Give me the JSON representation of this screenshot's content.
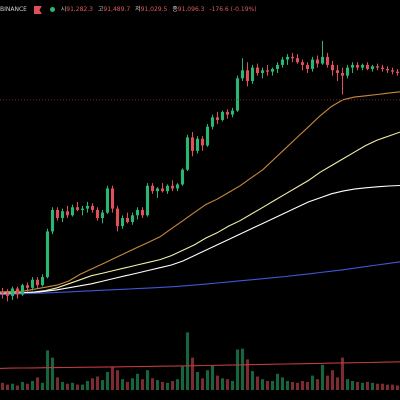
{
  "header": {
    "exchange": "BINANCE",
    "status_dot": "live-dot",
    "ohlc": [
      {
        "label": "시",
        "value": "91,282.3"
      },
      {
        "label": "고",
        "value": "91,489.7"
      },
      {
        "label": "저",
        "value": "91,029.5"
      },
      {
        "label": "종",
        "value": "91,096.3"
      }
    ],
    "change": "-176.6 (-0.19%)"
  },
  "colors": {
    "background": "#000000",
    "up": "#2bb673",
    "down": "#e0505a",
    "ma_short": "#c8893d",
    "ma_mid": "#f3efa6",
    "ma_long": "#ffffff",
    "ma_200": "#3f56d6",
    "ma_400": "#c0393b",
    "price_line": "#8a2b2b"
  },
  "chart_data": {
    "type": "candlestick",
    "title": "",
    "xlabel": "",
    "ylabel": "",
    "ylim": [
      89800,
      91900
    ],
    "volume_ylim": [
      0,
      100
    ],
    "price_line": 91380,
    "grid": false,
    "candles": [
      [
        89950,
        89980,
        89900,
        89940,
        8
      ],
      [
        89940,
        89970,
        89880,
        89920,
        6
      ],
      [
        89920,
        89990,
        89890,
        89975,
        7
      ],
      [
        89975,
        89990,
        89900,
        89930,
        5
      ],
      [
        89930,
        90010,
        89920,
        90000,
        9
      ],
      [
        90000,
        90020,
        89950,
        89980,
        7
      ],
      [
        89980,
        90060,
        89960,
        90040,
        10
      ],
      [
        90040,
        90060,
        89980,
        90000,
        14
      ],
      [
        90000,
        90080,
        89990,
        90060,
        8
      ],
      [
        90060,
        90420,
        90050,
        90400,
        44
      ],
      [
        90400,
        90580,
        90380,
        90560,
        36
      ],
      [
        90560,
        90580,
        90480,
        90500,
        14
      ],
      [
        90500,
        90570,
        90470,
        90550,
        9
      ],
      [
        90550,
        90590,
        90500,
        90520,
        7
      ],
      [
        90520,
        90600,
        90510,
        90580,
        8
      ],
      [
        90580,
        90620,
        90550,
        90560,
        6
      ],
      [
        90560,
        90590,
        90520,
        90570,
        6
      ],
      [
        90570,
        90620,
        90540,
        90590,
        10
      ],
      [
        90590,
        90610,
        90540,
        90560,
        13
      ],
      [
        90560,
        90580,
        90480,
        90500,
        15
      ],
      [
        90500,
        90560,
        90460,
        90540,
        11
      ],
      [
        90540,
        90740,
        90530,
        90720,
        20
      ],
      [
        90720,
        90740,
        90540,
        90570,
        26
      ],
      [
        90570,
        90590,
        90400,
        90440,
        22
      ],
      [
        90440,
        90520,
        90420,
        90500,
        12
      ],
      [
        90500,
        90540,
        90460,
        90470,
        9
      ],
      [
        90470,
        90540,
        90450,
        90520,
        13
      ],
      [
        90520,
        90580,
        90490,
        90560,
        18
      ],
      [
        90560,
        90580,
        90500,
        90520,
        12
      ],
      [
        90520,
        90760,
        90510,
        90740,
        22
      ],
      [
        90740,
        90760,
        90680,
        90700,
        13
      ],
      [
        90700,
        90730,
        90650,
        90720,
        11
      ],
      [
        90720,
        90760,
        90690,
        90700,
        9
      ],
      [
        90700,
        90750,
        90680,
        90740,
        8
      ],
      [
        90740,
        90780,
        90700,
        90720,
        10
      ],
      [
        90720,
        90760,
        90700,
        90750,
        12
      ],
      [
        90750,
        90870,
        90740,
        90860,
        26
      ],
      [
        90860,
        91120,
        90850,
        91100,
        64
      ],
      [
        91100,
        91140,
        90960,
        91000,
        36
      ],
      [
        91000,
        91110,
        90980,
        91090,
        20
      ],
      [
        91090,
        91110,
        91000,
        91040,
        13
      ],
      [
        91040,
        91200,
        91030,
        91180,
        22
      ],
      [
        91180,
        91270,
        91160,
        91250,
        27
      ],
      [
        91250,
        91290,
        91200,
        91230,
        16
      ],
      [
        91230,
        91300,
        91220,
        91290,
        13
      ],
      [
        91290,
        91310,
        91240,
        91270,
        12
      ],
      [
        91270,
        91320,
        91250,
        91300,
        10
      ],
      [
        91300,
        91560,
        91290,
        91540,
        45
      ],
      [
        91540,
        91690,
        91520,
        91600,
        46
      ],
      [
        91600,
        91660,
        91480,
        91520,
        34
      ],
      [
        91520,
        91640,
        91500,
        91620,
        21
      ],
      [
        91620,
        91650,
        91560,
        91580,
        15
      ],
      [
        91580,
        91620,
        91540,
        91600,
        12
      ],
      [
        91600,
        91640,
        91560,
        91590,
        10
      ],
      [
        91590,
        91620,
        91560,
        91610,
        10
      ],
      [
        91610,
        91660,
        91580,
        91640,
        18
      ],
      [
        91640,
        91700,
        91620,
        91680,
        14
      ],
      [
        91680,
        91720,
        91640,
        91700,
        10
      ],
      [
        91700,
        91730,
        91660,
        91690,
        9
      ],
      [
        91690,
        91720,
        91650,
        91660,
        8
      ],
      [
        91660,
        91680,
        91600,
        91640,
        10
      ],
      [
        91640,
        91660,
        91580,
        91610,
        9
      ],
      [
        91610,
        91700,
        91590,
        91680,
        16
      ],
      [
        91680,
        91710,
        91620,
        91650,
        12
      ],
      [
        91650,
        91820,
        91640,
        91700,
        28
      ],
      [
        91700,
        91730,
        91620,
        91640,
        16
      ],
      [
        91640,
        91670,
        91560,
        91600,
        22
      ],
      [
        91600,
        91640,
        91520,
        91580,
        14
      ],
      [
        91580,
        91620,
        91420,
        91560,
        36
      ],
      [
        91560,
        91640,
        91540,
        91620,
        12
      ],
      [
        91620,
        91660,
        91580,
        91640,
        10
      ],
      [
        91640,
        91660,
        91600,
        91620,
        9
      ],
      [
        91620,
        91650,
        91600,
        91640,
        8
      ],
      [
        91640,
        91660,
        91600,
        91610,
        9
      ],
      [
        91610,
        91640,
        91590,
        91630,
        8
      ],
      [
        91630,
        91650,
        91600,
        91620,
        7
      ],
      [
        91620,
        91640,
        91590,
        91610,
        7
      ],
      [
        91610,
        91630,
        91580,
        91600,
        6
      ],
      [
        91600,
        91620,
        91570,
        91590,
        6
      ],
      [
        91590,
        91610,
        91560,
        91580,
        5
      ]
    ],
    "moving_averages": [
      {
        "key": "ma_short",
        "values": [
          89950,
          89952,
          89955,
          89970,
          89985,
          90000,
          90030,
          90080,
          90120,
          90160,
          90200,
          90240,
          90280,
          90320,
          90360,
          90420,
          90480,
          90540,
          90600,
          90640,
          90690,
          90740,
          90800,
          90860,
          90940,
          91020,
          91100,
          91180,
          91260,
          91330,
          91380,
          91400,
          91410,
          91420,
          91430,
          91440
        ]
      },
      {
        "key": "ma_mid",
        "values": [
          89940,
          89942,
          89944,
          89950,
          89960,
          89980,
          90010,
          90040,
          90070,
          90090,
          90110,
          90130,
          90150,
          90170,
          90190,
          90220,
          90260,
          90300,
          90350,
          90390,
          90440,
          90480,
          90530,
          90580,
          90630,
          90680,
          90730,
          90780,
          90840,
          90890,
          90940,
          90990,
          91040,
          91080,
          91110,
          91140
        ]
      },
      {
        "key": "ma_long",
        "values": [
          89930,
          89935,
          89940,
          89945,
          89955,
          89965,
          89980,
          89995,
          90010,
          90030,
          90050,
          90070,
          90090,
          90110,
          90130,
          90150,
          90180,
          90220,
          90260,
          90300,
          90340,
          90380,
          90420,
          90460,
          90500,
          90540,
          90580,
          90620,
          90650,
          90680,
          90700,
          90715,
          90725,
          90732,
          90738,
          90742
        ]
      },
      {
        "key": "ma_200",
        "values": [
          89930,
          89933,
          89936,
          89939,
          89942,
          89946,
          89950,
          89954,
          89958,
          89962,
          89966,
          89970,
          89974,
          89978,
          89983,
          89988,
          89994,
          90000,
          90008,
          90016,
          90024,
          90032,
          90040,
          90048,
          90056,
          90064,
          90074,
          90084,
          90094,
          90104,
          90114,
          90126,
          90138,
          90150,
          90162,
          90174
        ]
      },
      {
        "key": "ma_400",
        "values": [
          80,
          81,
          81.5,
          82,
          82.5,
          83,
          83.5,
          84,
          84.5,
          85,
          85.6,
          86.2,
          86.8,
          87.4,
          88,
          88.7,
          89.4,
          90.1,
          90.8,
          91.5,
          92.3,
          93.1,
          93.9,
          94.7,
          95.5,
          96.3,
          97.1,
          97.9,
          98.7,
          99.5,
          100.3,
          101.1,
          101.9,
          102.7,
          103.5,
          104.3
        ]
      }
    ]
  }
}
